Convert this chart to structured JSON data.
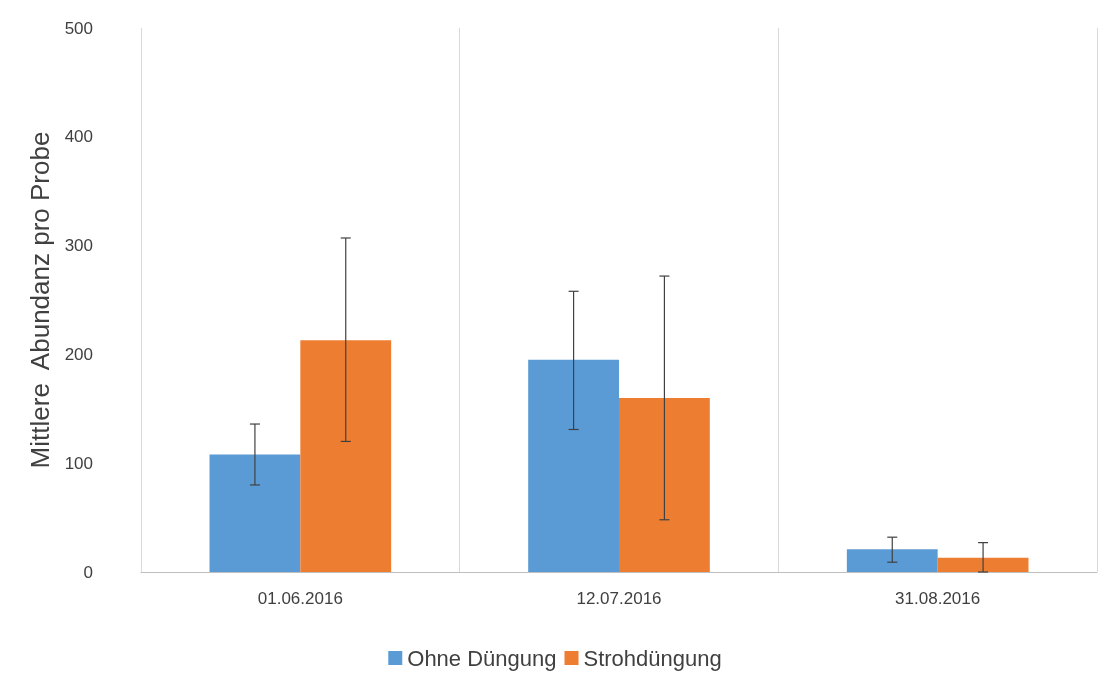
{
  "chart_data": {
    "type": "bar",
    "ylabel": "Mittlere  Abundanz pro Probe",
    "categories": [
      "01.06.2016",
      "12.07.2016",
      "31.08.2016"
    ],
    "series": [
      {
        "name": "Ohne Düngung",
        "color": "#5b9bd5",
        "values": [
          108,
          195,
          21
        ],
        "errors": [
          [
            80,
            136
          ],
          [
            131,
            258
          ],
          [
            9,
            32
          ]
        ]
      },
      {
        "name": "Strohdüngung",
        "color": "#ed7d31",
        "values": [
          213,
          160,
          13
        ],
        "errors": [
          [
            120,
            307
          ],
          [
            48,
            272
          ],
          [
            0,
            27
          ]
        ]
      }
    ],
    "ylim": [
      0,
      500
    ],
    "yticks": [
      0,
      100,
      200,
      300,
      400,
      500
    ],
    "grid": "x",
    "legend": "bottom"
  }
}
